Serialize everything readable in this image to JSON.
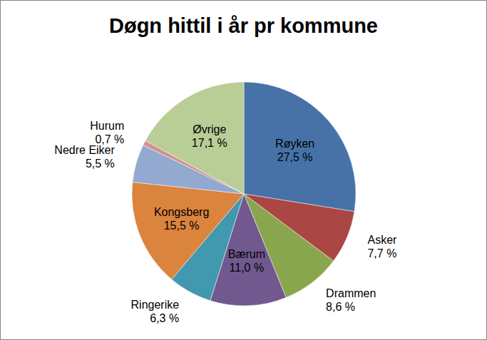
{
  "chart_data": {
    "type": "pie",
    "title": "Døgn hittil i år pr kommune",
    "categories": [
      "Røyken",
      "Asker",
      "Drammen",
      "Bærum",
      "Ringerike",
      "Kongsberg",
      "Nedre Eiker",
      "Hurum",
      "Øvrige"
    ],
    "values": [
      27.5,
      7.7,
      8.6,
      11.0,
      6.3,
      15.5,
      5.5,
      0.7,
      17.1
    ],
    "value_labels": [
      "27,5 %",
      "7,7 %",
      "8,6 %",
      "11,0 %",
      "6,3 %",
      "15,5 %",
      "5,5 %",
      "0,7 %",
      "17,1 %"
    ],
    "colors": [
      "#4672a8",
      "#aa4643",
      "#89a54e",
      "#71588f",
      "#4198af",
      "#db843d",
      "#93a9cf",
      "#d19392",
      "#b9cd96"
    ],
    "data_labels": true
  }
}
